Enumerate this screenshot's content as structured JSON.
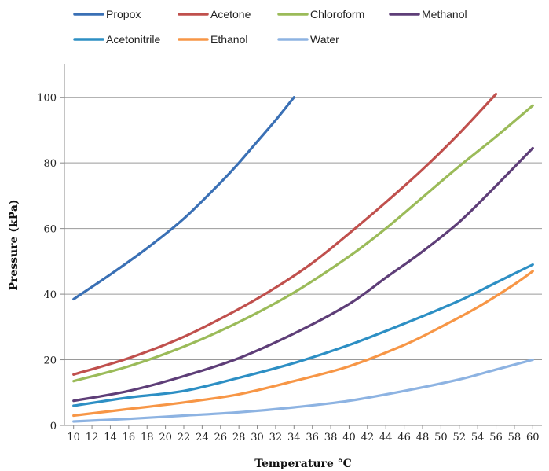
{
  "chart_data": {
    "type": "line",
    "title": "",
    "xlabel": "Temperature °C",
    "ylabel": "Pressure (kPa)",
    "xlim": [
      9,
      61
    ],
    "ylim": [
      0,
      110
    ],
    "x_ticks": [
      10,
      12,
      14,
      16,
      18,
      20,
      22,
      24,
      26,
      28,
      30,
      32,
      34,
      36,
      38,
      40,
      42,
      44,
      46,
      48,
      50,
      52,
      54,
      56,
      58,
      60
    ],
    "y_ticks": [
      0,
      20,
      40,
      60,
      80,
      100
    ],
    "grid": "horizontal",
    "legend_position": "top",
    "series": [
      {
        "name": "Propox",
        "color": "#3a70b5",
        "x": [
          10,
          14,
          18,
          22,
          26,
          28,
          30,
          32,
          34
        ],
        "values": [
          38.5,
          46,
          54,
          63,
          74,
          80,
          86.5,
          93,
          100
        ]
      },
      {
        "name": "Acetone",
        "color": "#c0504d",
        "x": [
          10,
          16,
          22,
          28,
          32,
          36,
          40,
          44,
          48,
          52,
          56
        ],
        "values": [
          15.5,
          20.5,
          27,
          35.5,
          42,
          49.5,
          58.5,
          68,
          78,
          89,
          101
        ]
      },
      {
        "name": "Chloroform",
        "color": "#9bbb59",
        "x": [
          10,
          16,
          22,
          28,
          34,
          40,
          44,
          48,
          52,
          56,
          60
        ],
        "values": [
          13.5,
          18,
          24,
          31.5,
          40.5,
          51.5,
          60,
          69.5,
          79,
          88,
          97.5
        ]
      },
      {
        "name": "Methanol",
        "color": "#5e3e78",
        "x": [
          10,
          16,
          22,
          28,
          34,
          40,
          44,
          48,
          52,
          56,
          60
        ],
        "values": [
          7.5,
          10.5,
          15,
          20.5,
          28,
          37,
          45,
          53,
          62,
          73,
          84.5
        ]
      },
      {
        "name": "Acetonitrile",
        "color": "#2d8fc4",
        "x": [
          10,
          16,
          22,
          28,
          34,
          40,
          46,
          52,
          56,
          60
        ],
        "values": [
          6,
          8.5,
          10.5,
          14.5,
          19,
          24.5,
          31,
          38,
          43.5,
          49
        ]
      },
      {
        "name": "Ethanol",
        "color": "#f79646",
        "x": [
          10,
          16,
          22,
          28,
          34,
          40,
          46,
          50,
          54,
          58,
          60
        ],
        "values": [
          3,
          5,
          7,
          9.5,
          13.5,
          18,
          24.5,
          30,
          36,
          43,
          47
        ]
      },
      {
        "name": "Water",
        "color": "#8db3e2",
        "x": [
          10,
          16,
          22,
          28,
          34,
          40,
          46,
          52,
          56,
          60
        ],
        "values": [
          1.2,
          2,
          3,
          4,
          5.5,
          7.5,
          10.5,
          14,
          17,
          20
        ]
      }
    ]
  }
}
